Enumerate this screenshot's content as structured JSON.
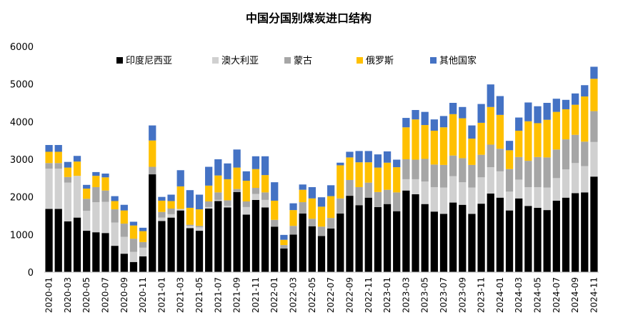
{
  "chart_data": {
    "type": "bar",
    "stacked": true,
    "title": "中国分国别煤炭进口结构",
    "ylim": [
      0,
      6000
    ],
    "yticks": [
      0,
      1000,
      2000,
      3000,
      4000,
      5000,
      6000
    ],
    "grid": false,
    "legend_position": "top",
    "categories": [
      "2020-01",
      "2020-02",
      "2020-03",
      "2020-04",
      "2020-05",
      "2020-06",
      "2020-07",
      "2020-08",
      "2020-09",
      "2020-10",
      "2020-11",
      "2020-12",
      "2021-01",
      "2021-02",
      "2021-03",
      "2021-04",
      "2021-05",
      "2021-06",
      "2021-07",
      "2021-08",
      "2021-09",
      "2021-10",
      "2021-11",
      "2021-12",
      "2022-01",
      "2022-02",
      "2022-03",
      "2022-04",
      "2022-05",
      "2022-06",
      "2022-07",
      "2022-08",
      "2022-09",
      "2022-10",
      "2022-11",
      "2022-12",
      "2023-01",
      "2023-02",
      "2023-03",
      "2023-04",
      "2023-05",
      "2023-06",
      "2023-07",
      "2023-08",
      "2023-09",
      "2023-10",
      "2023-11",
      "2023-12",
      "2024-01",
      "2024-02",
      "2024-03",
      "2024-04",
      "2024-05",
      "2024-06",
      "2024-07",
      "2024-08",
      "2024-09",
      "2024-10",
      "2024-11"
    ],
    "xtick_labels": [
      "2020-01",
      "2020-03",
      "2020-05",
      "2020-07",
      "2020-09",
      "2020-11",
      "2021-01",
      "2021-03",
      "2021-05",
      "2021-07",
      "2021-09",
      "2021-11",
      "2022-01",
      "2022-03",
      "2022-05",
      "2022-07",
      "2022-09",
      "2022-11",
      "2023-01",
      "2023-03",
      "2023-05",
      "2023-07",
      "2023-09",
      "2023-11",
      "2024-01",
      "2024-03",
      "2024-05",
      "2024-07",
      "2024-09",
      "2024-11"
    ],
    "series": [
      {
        "name": "印度尼西亚",
        "color": "#000000",
        "values": [
          1680,
          1680,
          1350,
          1450,
          1100,
          1060,
          1040,
          700,
          490,
          270,
          420,
          2600,
          1360,
          1450,
          1640,
          1170,
          1100,
          1690,
          1890,
          1720,
          2130,
          1530,
          1920,
          1720,
          1210,
          630,
          1000,
          1560,
          1220,
          960,
          1160,
          1560,
          2030,
          1780,
          1980,
          1730,
          1810,
          1620,
          2170,
          2070,
          1810,
          1610,
          1550,
          1850,
          1790,
          1550,
          1820,
          2090,
          1980,
          1640,
          1960,
          1760,
          1710,
          1650,
          1900,
          1980,
          2100,
          2120,
          2540
        ]
      },
      {
        "name": "澳大利亚",
        "color": "#d0d0d0",
        "values": [
          1070,
          1070,
          1030,
          1110,
          530,
          800,
          830,
          620,
          450,
          270,
          230,
          0,
          90,
          90,
          40,
          60,
          90,
          40,
          30,
          40,
          0,
          200,
          160,
          200,
          0,
          0,
          0,
          0,
          0,
          0,
          0,
          0,
          0,
          0,
          0,
          0,
          0,
          0,
          300,
          400,
          600,
          650,
          700,
          700,
          600,
          700,
          700,
          700,
          700,
          500,
          500,
          500,
          550,
          600,
          600,
          750,
          800,
          700,
          920
        ]
      },
      {
        "name": "蒙古",
        "color": "#a6a6a6",
        "values": [
          150,
          150,
          150,
          0,
          320,
          400,
          300,
          350,
          350,
          350,
          150,
          200,
          150,
          150,
          0,
          30,
          40,
          150,
          200,
          150,
          80,
          150,
          160,
          200,
          180,
          90,
          230,
          300,
          200,
          250,
          280,
          400,
          420,
          480,
          400,
          400,
          380,
          500,
          530,
          520,
          600,
          600,
          600,
          550,
          640,
          600,
          600,
          600,
          600,
          600,
          600,
          700,
          800,
          800,
          760,
          800,
          750,
          650,
          820
        ]
      },
      {
        "name": "俄罗斯",
        "color": "#ffc000",
        "values": [
          300,
          300,
          250,
          380,
          270,
          300,
          350,
          220,
          350,
          350,
          290,
          700,
          300,
          200,
          600,
          450,
          440,
          420,
          450,
          560,
          570,
          550,
          500,
          460,
          510,
          140,
          420,
          330,
          540,
          530,
          580,
          880,
          600,
          660,
          540,
          650,
          720,
          670,
          850,
          1070,
          900,
          900,
          1000,
          1100,
          1060,
          700,
          850,
          1000,
          900,
          500,
          700,
          1050,
          900,
          1000,
          1000,
          800,
          800,
          1200,
          860
        ]
      },
      {
        "name": "其他国家",
        "color": "#4472c4",
        "values": [
          180,
          180,
          150,
          150,
          100,
          100,
          100,
          130,
          150,
          100,
          90,
          400,
          100,
          170,
          430,
          470,
          390,
          500,
          430,
          420,
          480,
          250,
          340,
          500,
          490,
          130,
          180,
          140,
          300,
          250,
          290,
          70,
          150,
          300,
          300,
          350,
          300,
          200,
          250,
          250,
          350,
          300,
          300,
          300,
          300,
          350,
          500,
          600,
          500,
          250,
          350,
          500,
          450,
          450,
          350,
          250,
          300,
          300,
          320
        ]
      }
    ]
  }
}
